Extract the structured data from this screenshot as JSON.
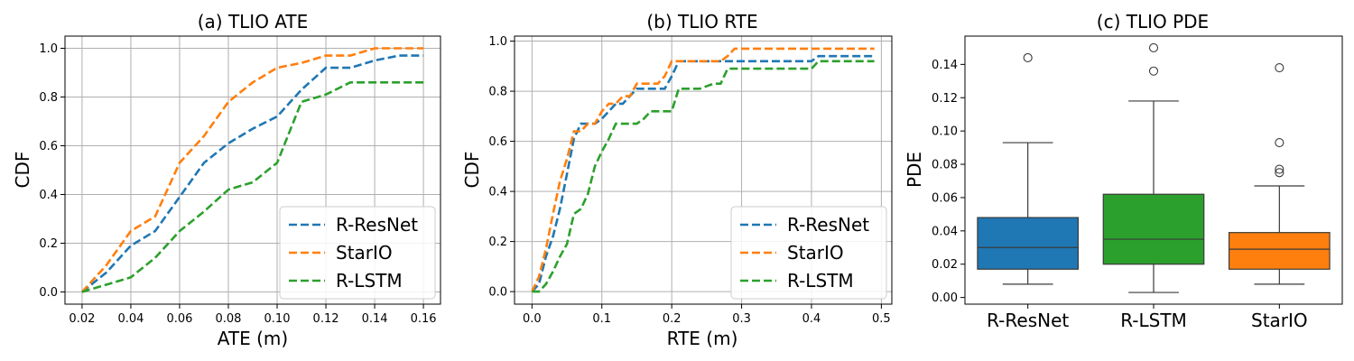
{
  "colors": {
    "r_resnet": "#1f77b4",
    "starlo": "#ff7f0e",
    "r_lstm": "#2ca02c"
  },
  "chart_data": [
    {
      "type": "line",
      "title": "(a) TLIO ATE",
      "xlabel": "ATE (m)",
      "ylabel": "CDF",
      "xlim": [
        0.013,
        0.167
      ],
      "ylim": [
        -0.05,
        1.05
      ],
      "xticks": [
        "0.02",
        "0.04",
        "0.06",
        "0.08",
        "0.10",
        "0.12",
        "0.14",
        "0.16"
      ],
      "yticks": [
        "0.0",
        "0.2",
        "0.4",
        "0.6",
        "0.8",
        "1.0"
      ],
      "grid": true,
      "legend_position": "lower-right",
      "series": [
        {
          "name": "R-ResNet",
          "x": [
            0.02,
            0.03,
            0.04,
            0.05,
            0.06,
            0.07,
            0.08,
            0.09,
            0.1,
            0.11,
            0.12,
            0.13,
            0.14,
            0.15,
            0.16
          ],
          "y": [
            0.0,
            0.08,
            0.19,
            0.25,
            0.39,
            0.53,
            0.61,
            0.67,
            0.72,
            0.83,
            0.92,
            0.92,
            0.95,
            0.97,
            0.97
          ]
        },
        {
          "name": "StarIO",
          "x": [
            0.02,
            0.03,
            0.04,
            0.05,
            0.06,
            0.07,
            0.08,
            0.09,
            0.1,
            0.11,
            0.12,
            0.13,
            0.14,
            0.15,
            0.16
          ],
          "y": [
            0.0,
            0.11,
            0.25,
            0.31,
            0.53,
            0.64,
            0.78,
            0.86,
            0.92,
            0.94,
            0.97,
            0.97,
            1.0,
            1.0,
            1.0
          ]
        },
        {
          "name": "R-LSTM",
          "x": [
            0.02,
            0.03,
            0.04,
            0.05,
            0.06,
            0.07,
            0.08,
            0.09,
            0.1,
            0.11,
            0.12,
            0.13,
            0.14,
            0.15,
            0.16
          ],
          "y": [
            0.0,
            0.03,
            0.06,
            0.14,
            0.25,
            0.33,
            0.42,
            0.45,
            0.53,
            0.78,
            0.81,
            0.86,
            0.86,
            0.86,
            0.86
          ]
        }
      ]
    },
    {
      "type": "line",
      "title": "(b) TLIO RTE",
      "xlabel": "RTE (m)",
      "ylabel": "CDF",
      "xlim": [
        -0.025,
        0.515
      ],
      "ylim": [
        -0.05,
        1.02
      ],
      "xticks": [
        "0.0",
        "0.1",
        "0.2",
        "0.3",
        "0.4",
        "0.5"
      ],
      "yticks": [
        "0.0",
        "0.2",
        "0.4",
        "0.6",
        "0.8",
        "1.0"
      ],
      "grid": true,
      "legend_position": "lower-right",
      "series": [
        {
          "name": "R-ResNet",
          "x": [
            0.0,
            0.01,
            0.02,
            0.03,
            0.04,
            0.05,
            0.06,
            0.07,
            0.08,
            0.09,
            0.1,
            0.11,
            0.12,
            0.13,
            0.14,
            0.15,
            0.16,
            0.17,
            0.18,
            0.19,
            0.2,
            0.21,
            0.22,
            0.25,
            0.3,
            0.35,
            0.4,
            0.41,
            0.45,
            0.49
          ],
          "y": [
            0.0,
            0.03,
            0.14,
            0.22,
            0.33,
            0.47,
            0.61,
            0.67,
            0.67,
            0.67,
            0.69,
            0.72,
            0.75,
            0.75,
            0.78,
            0.81,
            0.81,
            0.81,
            0.81,
            0.81,
            0.86,
            0.92,
            0.92,
            0.92,
            0.92,
            0.92,
            0.92,
            0.94,
            0.94,
            0.94
          ]
        },
        {
          "name": "StarIO",
          "x": [
            0.0,
            0.01,
            0.02,
            0.03,
            0.04,
            0.05,
            0.06,
            0.07,
            0.08,
            0.09,
            0.1,
            0.11,
            0.12,
            0.13,
            0.14,
            0.15,
            0.16,
            0.17,
            0.18,
            0.19,
            0.2,
            0.22,
            0.25,
            0.27,
            0.28,
            0.29,
            0.3,
            0.35,
            0.4,
            0.45,
            0.49
          ],
          "y": [
            0.0,
            0.06,
            0.17,
            0.31,
            0.44,
            0.53,
            0.64,
            0.64,
            0.67,
            0.67,
            0.72,
            0.75,
            0.75,
            0.78,
            0.78,
            0.83,
            0.83,
            0.83,
            0.83,
            0.86,
            0.92,
            0.92,
            0.92,
            0.92,
            0.94,
            0.97,
            0.97,
            0.97,
            0.97,
            0.97,
            0.97
          ]
        },
        {
          "name": "R-LSTM",
          "x": [
            0.0,
            0.01,
            0.02,
            0.03,
            0.04,
            0.05,
            0.06,
            0.07,
            0.08,
            0.09,
            0.1,
            0.11,
            0.12,
            0.13,
            0.14,
            0.15,
            0.16,
            0.17,
            0.18,
            0.19,
            0.2,
            0.21,
            0.22,
            0.24,
            0.26,
            0.27,
            0.28,
            0.3,
            0.35,
            0.38,
            0.4,
            0.41,
            0.45,
            0.49
          ],
          "y": [
            0.0,
            0.0,
            0.03,
            0.08,
            0.14,
            0.19,
            0.31,
            0.33,
            0.39,
            0.5,
            0.56,
            0.61,
            0.67,
            0.67,
            0.67,
            0.67,
            0.69,
            0.72,
            0.72,
            0.72,
            0.72,
            0.81,
            0.81,
            0.81,
            0.83,
            0.83,
            0.89,
            0.89,
            0.89,
            0.89,
            0.89,
            0.92,
            0.92,
            0.92
          ]
        }
      ]
    },
    {
      "type": "box",
      "title": "(c) TLIO PDE",
      "xlabel": "",
      "ylabel": "PDE",
      "ylim": [
        -0.004,
        0.157
      ],
      "yticks": [
        "0.00",
        "0.02",
        "0.04",
        "0.06",
        "0.08",
        "0.10",
        "0.12",
        "0.14"
      ],
      "grid": false,
      "categories": [
        "R-ResNet",
        "R-LSTM",
        "StarIO"
      ],
      "boxes": [
        {
          "name": "R-ResNet",
          "whisker_low": 0.008,
          "q1": 0.017,
          "median": 0.03,
          "q3": 0.048,
          "whisker_high": 0.093,
          "outliers": [
            0.144
          ]
        },
        {
          "name": "R-LSTM",
          "whisker_low": 0.003,
          "q1": 0.02,
          "median": 0.035,
          "q3": 0.062,
          "whisker_high": 0.118,
          "outliers": [
            0.136,
            0.15
          ]
        },
        {
          "name": "StarIO",
          "whisker_low": 0.008,
          "q1": 0.017,
          "median": 0.029,
          "q3": 0.039,
          "whisker_high": 0.067,
          "outliers": [
            0.075,
            0.077,
            0.093,
            0.138
          ]
        }
      ]
    }
  ]
}
